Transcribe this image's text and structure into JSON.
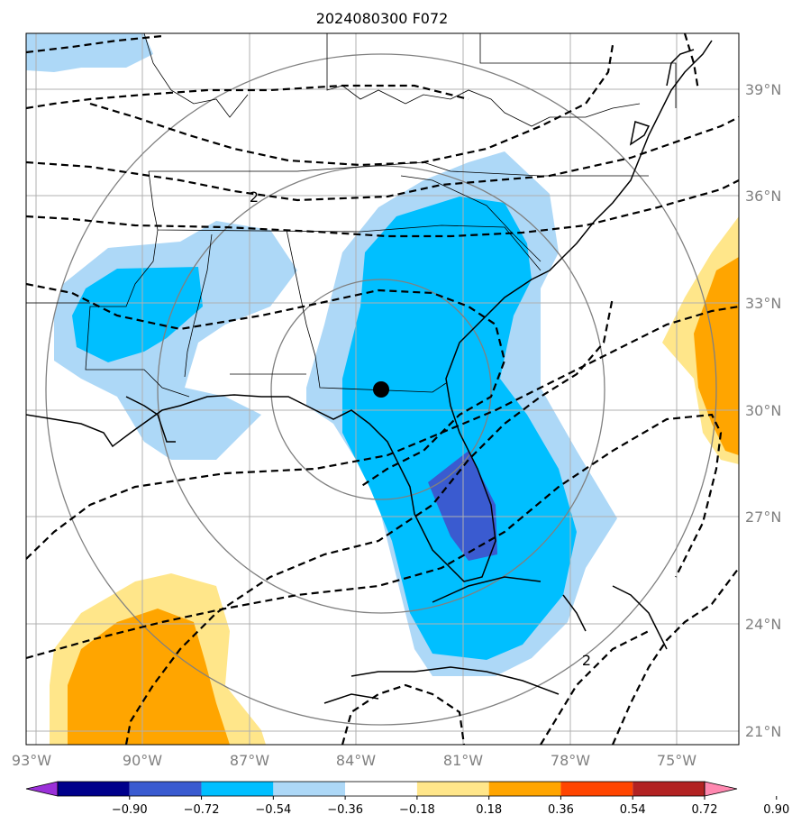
{
  "title": "2024080300 F072",
  "lat_labels": [
    "39°N",
    "36°N",
    "33°N",
    "30°N",
    "27°N",
    "24°N",
    "21°N"
  ],
  "lon_labels": [
    "93°W",
    "90°W",
    "87°W",
    "84°W",
    "81°W",
    "78°W",
    "75°W"
  ],
  "colorbar": {
    "ticks": [
      "−0.90",
      "−0.72",
      "−0.54",
      "−0.36",
      "−0.18",
      "0.18",
      "0.36",
      "0.54",
      "0.72",
      "0.90"
    ],
    "colors": [
      "#9b30d9",
      "#00008b",
      "#3a5bd0",
      "#00bfff",
      "#add8f7",
      "#ffffff",
      "#ffe68a",
      "#ffa500",
      "#ff4500",
      "#b22222",
      "#ff88b0"
    ]
  },
  "contour_labels": {
    "north": "2",
    "southeast": "2"
  },
  "legend": {
    "fill_colors": {
      "light_blue": "#add8f7",
      "blue": "#00bfff",
      "dark_blue": "#3a5bd0",
      "light_yellow": "#ffe68a",
      "orange": "#ffa500"
    }
  }
}
